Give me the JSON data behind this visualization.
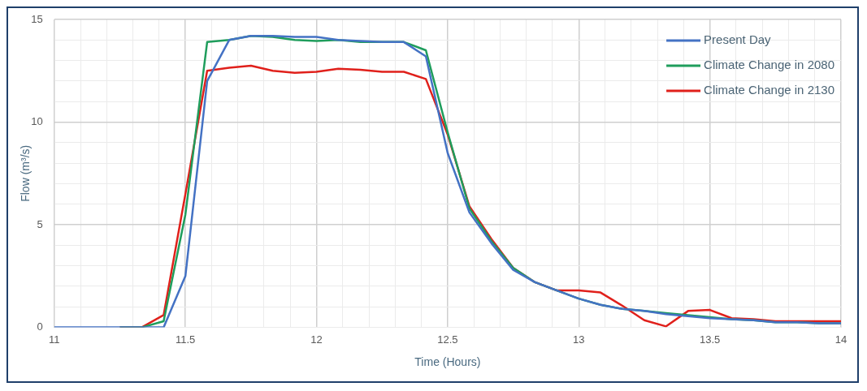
{
  "chart_data": {
    "type": "line",
    "xlabel": "Time (Hours)",
    "ylabel": "Flow (m³/s)",
    "x": [
      11,
      11.083,
      11.167,
      11.25,
      11.333,
      11.417,
      11.5,
      11.583,
      11.667,
      11.75,
      11.833,
      11.917,
      12,
      12.083,
      12.167,
      12.25,
      12.333,
      12.417,
      12.5,
      12.583,
      12.667,
      12.75,
      12.833,
      12.917,
      13,
      13.083,
      13.167,
      13.25,
      13.333,
      13.417,
      13.5,
      13.583,
      13.667,
      13.75,
      13.833,
      13.917,
      14
    ],
    "series": [
      {
        "name": "Present Day",
        "color": "#4472c4",
        "values": [
          0,
          0,
          0,
          0,
          0,
          0,
          2.5,
          12,
          14,
          14.2,
          14.2,
          14.15,
          14.15,
          14,
          13.95,
          13.9,
          13.9,
          13.2,
          8.5,
          5.6,
          4.1,
          2.8,
          2.2,
          1.8,
          1.4,
          1.1,
          0.9,
          0.8,
          0.65,
          0.55,
          0.45,
          0.4,
          0.35,
          0.25,
          0.25,
          0.2,
          0.2
        ]
      },
      {
        "name": "Climate Change in 2080",
        "color": "#1f9d5c",
        "values": [
          null,
          null,
          null,
          0,
          0,
          0.3,
          5.5,
          13.9,
          14,
          14.2,
          14.15,
          14,
          13.95,
          14,
          13.9,
          13.9,
          13.9,
          13.5,
          9.5,
          5.8,
          4.2,
          2.9,
          2.2,
          1.8,
          1.4,
          1.1,
          0.9,
          0.8,
          0.7,
          0.6,
          0.5,
          0.4,
          0.35,
          0.25,
          0.25,
          0.2,
          0.2
        ]
      },
      {
        "name": "Climate Change in 2130",
        "color": "#e0201b",
        "values": [
          null,
          null,
          null,
          0,
          0,
          0.6,
          6.5,
          12.5,
          12.65,
          12.75,
          12.5,
          12.4,
          12.45,
          12.6,
          12.55,
          12.45,
          12.45,
          12.1,
          9.4,
          5.9,
          4.3,
          2.9,
          2.2,
          1.8,
          1.8,
          1.7,
          1.05,
          0.35,
          0.05,
          0.8,
          0.85,
          0.45,
          0.4,
          0.3,
          0.3,
          0.3,
          0.3
        ]
      }
    ],
    "xlim": [
      11,
      14
    ],
    "xticks": [
      11,
      {
        "value": 11.1,
        "label": null
      },
      {
        "value": 11.2,
        "label": null
      },
      {
        "value": 11.3,
        "label": null
      },
      {
        "value": 11.4,
        "label": null
      },
      11.5,
      {
        "value": 11.6,
        "label": null
      },
      {
        "value": 11.7,
        "label": null
      },
      {
        "value": 11.8,
        "label": null
      },
      {
        "value": 11.9,
        "label": null
      },
      12,
      {
        "value": 12.1,
        "label": null
      },
      {
        "value": 12.2,
        "label": null
      },
      {
        "value": 12.3,
        "label": null
      },
      {
        "value": 12.4,
        "label": null
      },
      12.5,
      {
        "value": 12.6,
        "label": null
      },
      {
        "value": 12.7,
        "label": null
      },
      {
        "value": 12.8,
        "label": null
      },
      {
        "value": 12.9,
        "label": null
      },
      13,
      {
        "value": 13.1,
        "label": null
      },
      {
        "value": 13.2,
        "label": null
      },
      {
        "value": 13.3,
        "label": null
      },
      {
        "value": 13.4,
        "label": null
      },
      13.5,
      {
        "value": 13.6,
        "label": null
      },
      {
        "value": 13.7,
        "label": null
      },
      {
        "value": 13.8,
        "label": null
      },
      {
        "value": 13.9,
        "label": null
      },
      14
    ],
    "ylim": [
      0,
      15
    ],
    "yticks": [
      0,
      {
        "value": 1,
        "label": null
      },
      {
        "value": 2,
        "label": null
      },
      {
        "value": 3,
        "label": null
      },
      {
        "value": 4,
        "label": null
      },
      5,
      {
        "value": 6,
        "label": null
      },
      {
        "value": 7,
        "label": null
      },
      {
        "value": 8,
        "label": null
      },
      {
        "value": 9,
        "label": null
      },
      10,
      {
        "value": 11,
        "label": null
      },
      {
        "value": 12,
        "label": null
      },
      {
        "value": 13,
        "label": null
      },
      {
        "value": 14,
        "label": null
      },
      15
    ],
    "grid": true,
    "legend": "top right",
    "marker": "none",
    "line_style": "solid"
  }
}
